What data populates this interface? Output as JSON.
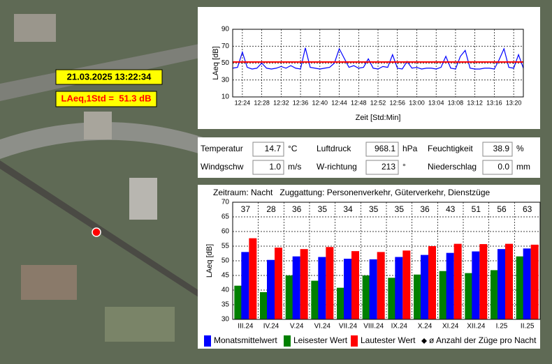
{
  "date_label": "21.03.2025 13:22:34",
  "level_label": "LAeq,1Std =  51.3 dB",
  "weather": {
    "rows": [
      [
        {
          "label": "Temperatur",
          "value": "14.7",
          "unit": "°C"
        },
        {
          "label": "Luftdruck",
          "value": "968.1",
          "unit": "hPa"
        },
        {
          "label": "Feuchtigkeit",
          "value": "38.9",
          "unit": "%"
        }
      ],
      [
        {
          "label": "Windgschw",
          "value": "1.0",
          "unit": "m/s"
        },
        {
          "label": "W-richtung",
          "value": "213",
          "unit": "°"
        },
        {
          "label": "Niederschlag",
          "value": "0.0",
          "unit": "mm"
        }
      ]
    ]
  },
  "chart_data": [
    {
      "type": "line",
      "xlabel": "Zeit [Std:Min]",
      "ylabel": "LAeq [dB]",
      "x": [
        "12:22",
        "12:23",
        "12:24",
        "12:25",
        "12:26",
        "12:27",
        "12:28",
        "12:29",
        "12:30",
        "12:31",
        "12:32",
        "12:33",
        "12:34",
        "12:35",
        "12:36",
        "12:37",
        "12:38",
        "12:39",
        "12:40",
        "12:41",
        "12:42",
        "12:43",
        "12:44",
        "12:45",
        "12:46",
        "12:47",
        "12:48",
        "12:49",
        "12:50",
        "12:51",
        "12:52",
        "12:53",
        "12:54",
        "12:55",
        "12:56",
        "12:57",
        "12:58",
        "12:59",
        "13:00",
        "13:01",
        "13:02",
        "13:03",
        "13:04",
        "13:05",
        "13:06",
        "13:07",
        "13:08",
        "13:09",
        "13:10",
        "13:11",
        "13:12",
        "13:13",
        "13:14",
        "13:15",
        "13:16",
        "13:17",
        "13:18",
        "13:19",
        "13:20",
        "13:21",
        "13:22"
      ],
      "series": [
        {
          "color": "#0000ff",
          "values": [
            44,
            45,
            63,
            45,
            43,
            44,
            50,
            44,
            43,
            44,
            46,
            44,
            47,
            44,
            43,
            68,
            45,
            44,
            43,
            44,
            45,
            50,
            67,
            56,
            45,
            47,
            44,
            45,
            55,
            44,
            43,
            46,
            45,
            60,
            44,
            43,
            52,
            44,
            45,
            43,
            44,
            44,
            43,
            45,
            58,
            44,
            43,
            58,
            65,
            44,
            43,
            43,
            44,
            44,
            43,
            54,
            67,
            45,
            44,
            60,
            44
          ]
        }
      ],
      "hline": {
        "value": 51.3,
        "color": "#ff0000"
      },
      "xticks": [
        "12:24",
        "12:28",
        "12:32",
        "12:36",
        "12:40",
        "12:44",
        "12:48",
        "12:52",
        "12:56",
        "13:00",
        "13:04",
        "13:08",
        "13:12",
        "13:16",
        "13:20"
      ],
      "ylim": [
        10,
        90
      ],
      "yticks": [
        10,
        30,
        50,
        70,
        90
      ],
      "grid": true
    },
    {
      "type": "bar",
      "title": "Zeitraum: Nacht   Zuggattung: Personenverkehr, Güterverkehr, Dienstzüge",
      "ylabel": "LAeq [dB]",
      "categories": [
        "III.24",
        "IV.24",
        "V.24",
        "VI.24",
        "VII.24",
        "VIII.24",
        "IX.24",
        "X.24",
        "XI.24",
        "XII.24",
        "I.25",
        "II.25"
      ],
      "series": [
        {
          "name": "Monatsmittelwert",
          "color": "#0000ff",
          "values": [
            53,
            50.3,
            51.5,
            51.3,
            50.7,
            50.5,
            51.3,
            52,
            52.7,
            53.2,
            54,
            54.2
          ]
        },
        {
          "name": "Leisester Wert",
          "color": "#008000",
          "values": [
            41.5,
            39.3,
            45,
            43.2,
            40.8,
            45,
            44.2,
            45.3,
            46.5,
            45.8,
            46.8,
            51.5
          ]
        },
        {
          "name": "Lautester Wert",
          "color": "#ff0000",
          "values": [
            57.7,
            54.5,
            54,
            54.7,
            53.3,
            53,
            53.5,
            55,
            55.8,
            55.7,
            55.8,
            55.5
          ]
        },
        {
          "name": "ø Anzahl der Züge pro Nacht",
          "color": "#000000",
          "values": [
            37,
            28,
            36,
            35,
            34,
            35,
            35,
            36,
            43,
            51,
            56,
            63
          ]
        }
      ],
      "ylim": [
        30,
        70
      ],
      "yticks": [
        30,
        35,
        40,
        45,
        50,
        55,
        60,
        65,
        70
      ],
      "grid": true
    }
  ]
}
